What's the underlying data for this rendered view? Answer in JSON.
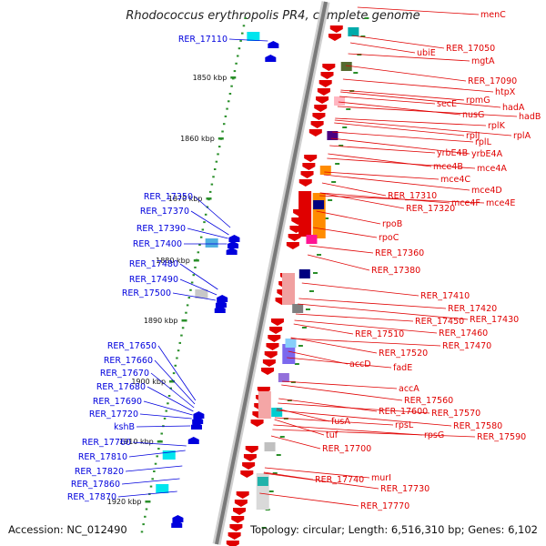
{
  "title": "Rhodococcus erythropolis PR4, complete genome",
  "footer": {
    "accession_label": "Accession:",
    "accession": "NC_012490",
    "summary": "Topology: circular; Length: 6,516,310 bp; Genes: 6,102"
  },
  "colors": {
    "axis": "#7a7a7a",
    "minus_strand": "#e00000",
    "plus_strand": "#0000dd",
    "tick": "#2a8f2a"
  },
  "scale_labels": [
    "1850 kbp",
    "1860 kbp",
    "1870 kbp",
    "1880 kbp",
    "1890 kbp",
    "1900 kbp",
    "1910 kbp",
    "1920 kbp"
  ],
  "left_genes": [
    "RER_17110",
    "RER_17350",
    "RER_17370",
    "RER_17390",
    "RER_17400",
    "RER_17480",
    "RER_17490",
    "RER_17500",
    "RER_17650",
    "RER_17660",
    "RER_17670",
    "RER_17680",
    "RER_17690",
    "RER_17720",
    "kshB",
    "RER_17760",
    "RER_17810",
    "RER_17820",
    "RER_17860",
    "RER_17870"
  ],
  "right_genes": [
    "menC",
    "RER_17050",
    "ubiE",
    "mgtA",
    "RER_17090",
    "htpX",
    "rpmG",
    "secE",
    "hadA",
    "nusG",
    "hadB",
    "rplK",
    "rplA",
    "rplJ",
    "rplL",
    "yrbE4B",
    "yrbE4A",
    "mce4B",
    "mce4A",
    "mce4C",
    "mce4D",
    "RER_17310",
    "mce4F",
    "mce4E",
    "RER_17320",
    "rpoB",
    "rpoC",
    "RER_17360",
    "RER_17380",
    "RER_17410",
    "RER_17420",
    "RER_17450",
    "RER_17430",
    "RER_17460",
    "RER_17510",
    "RER_17470",
    "RER_17520",
    "accD",
    "fadE",
    "accA",
    "RER_17560",
    "RER_17600",
    "RER_17570",
    "rpsL",
    "RER_17580",
    "fusA",
    "rpsG",
    "RER_17590",
    "tuf",
    "RER_17700",
    "murI",
    "RER_17740",
    "RER_17730",
    "RER_17770"
  ]
}
